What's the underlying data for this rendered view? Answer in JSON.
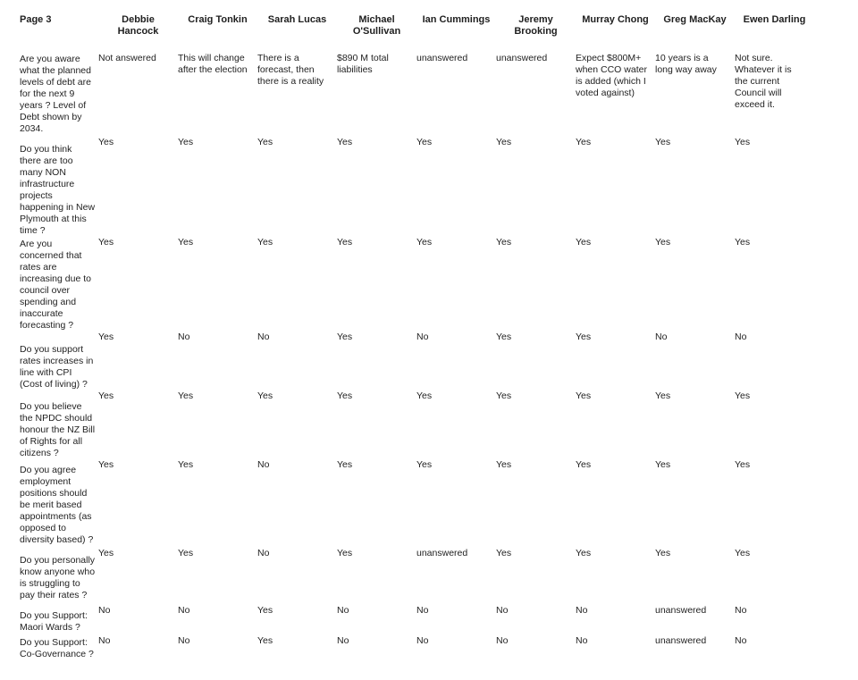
{
  "page_label": "Page 3",
  "colors": {
    "text": "#1f1f1f",
    "background": "#ffffff"
  },
  "columns": [
    "Debbie Hancock",
    "Craig Tonkin",
    "Sarah Lucas",
    "Michael O'Sullivan",
    "Ian Cummings",
    "Jeremy Brooking",
    "Murray Chong",
    "Greg MacKay",
    "Ewen Darling"
  ],
  "rows": [
    {
      "question": "Are you aware what the planned levels of debt are for the next 9 years ? Level of Debt shown by 2034.",
      "answers": [
        "Not answered",
        "This will change after the election",
        "There is a forecast, then there is a reality",
        "$890 M total liabilities",
        "unanswered",
        "unanswered",
        "Expect $800M+ when CCO water is added (which I voted against)",
        "10 years is a long way away",
        "Not sure. Whatever it is the current Council will exceed it."
      ]
    },
    {
      "question": "Do you think there are too many NON infrastructure projects happening in New Plymouth at this time ?",
      "answers": [
        "Yes",
        "Yes",
        "Yes",
        "Yes",
        "Yes",
        "Yes",
        "Yes",
        "Yes",
        "Yes"
      ]
    },
    {
      "question": "Are you concerned that rates are increasing due to council over spending and inaccurate forecasting ?",
      "answers": [
        "Yes",
        "Yes",
        "Yes",
        "Yes",
        "Yes",
        "Yes",
        "Yes",
        "Yes",
        "Yes"
      ]
    },
    {
      "question": "Do you support rates increases in line with CPI (Cost of living) ?",
      "answers": [
        "Yes",
        "No",
        "No",
        "Yes",
        "No",
        "Yes",
        "Yes",
        "No",
        "No"
      ]
    },
    {
      "question": "Do you believe the NPDC should honour the NZ Bill of Rights for all citizens ?",
      "answers": [
        "Yes",
        "Yes",
        "Yes",
        "Yes",
        "Yes",
        "Yes",
        "Yes",
        "Yes",
        "Yes"
      ]
    },
    {
      "question": "Do you agree employment positions should be merit based appointments (as opposed to diversity based) ?",
      "answers": [
        "Yes",
        "Yes",
        "No",
        "Yes",
        "Yes",
        "Yes",
        "Yes",
        "Yes",
        "Yes"
      ]
    },
    {
      "question": "Do you personally know anyone who is struggling to pay their rates ?",
      "answers": [
        "Yes",
        "Yes",
        "No",
        "Yes",
        "unanswered",
        "Yes",
        "Yes",
        "Yes",
        "Yes"
      ]
    },
    {
      "question": "Do you Support: Maori Wards ?",
      "answers": [
        "No",
        "No",
        "Yes",
        "No",
        "No",
        "No",
        "No",
        "unanswered",
        "No"
      ]
    },
    {
      "question": "Do you Support: Co-Governance ?",
      "answers": [
        "No",
        "No",
        "Yes",
        "No",
        "No",
        "No",
        "No",
        "unanswered",
        "No"
      ]
    }
  ]
}
